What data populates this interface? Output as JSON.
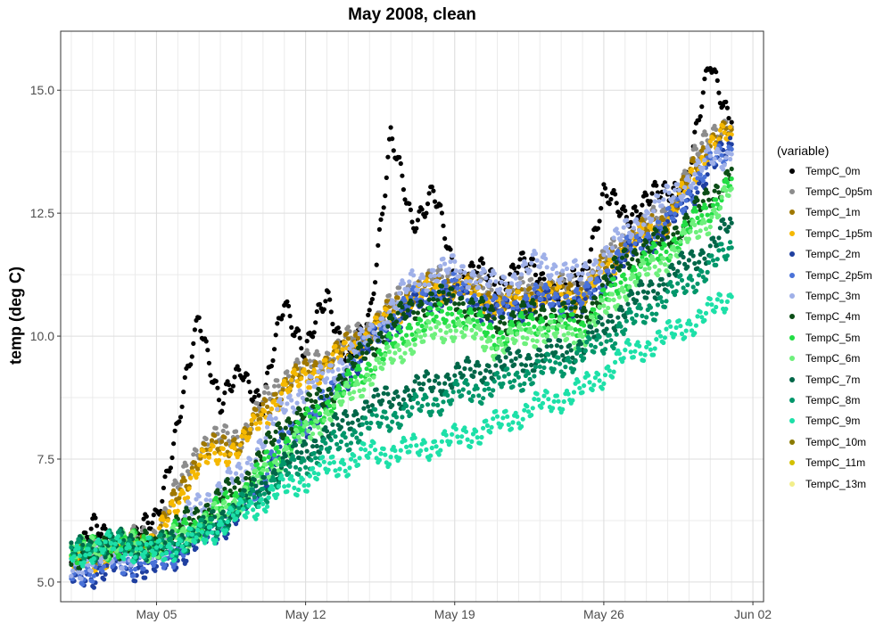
{
  "chart_data": {
    "type": "scatter",
    "title": "May 2008, clean",
    "xlabel": "",
    "ylabel": "temp (deg C)",
    "xlim": [
      "2008-04-30T12:00",
      "2008-06-02T12:00"
    ],
    "ylim": [
      4.6,
      16.2
    ],
    "x_ticks": [
      {
        "date": "2008-05-05",
        "label": "May 05"
      },
      {
        "date": "2008-05-12",
        "label": "May 12"
      },
      {
        "date": "2008-05-19",
        "label": "May 19"
      },
      {
        "date": "2008-05-26",
        "label": "May 26"
      },
      {
        "date": "2008-06-02",
        "label": "Jun 02"
      }
    ],
    "y_ticks": [
      5.0,
      7.5,
      10.0,
      12.5,
      15.0
    ],
    "y_tick_labels": [
      "5.0",
      "7.5",
      "10.0",
      "12.5",
      "15.0"
    ],
    "grid": true,
    "legend": {
      "title": "(variable)",
      "placement": "right"
    },
    "series": [
      {
        "name": "TempC_0m",
        "color": "#000000",
        "points": [
          [
            "2008-05-01T00:00",
            5.5
          ],
          [
            "2008-05-02T00:00",
            6.1
          ],
          [
            "2008-05-03T00:00",
            5.75
          ],
          [
            "2008-05-04T00:00",
            5.85
          ],
          [
            "2008-05-05T00:00",
            6.4
          ],
          [
            "2008-05-06T00:00",
            8.1
          ],
          [
            "2008-05-07T00:00",
            10.5
          ],
          [
            "2008-05-08T00:00",
            8.5
          ],
          [
            "2008-05-09T00:00",
            9.4
          ],
          [
            "2008-05-10T00:00",
            8.5
          ],
          [
            "2008-05-11T00:00",
            10.8
          ],
          [
            "2008-05-12T00:00",
            9.6
          ],
          [
            "2008-05-13T00:00",
            10.9
          ],
          [
            "2008-05-14T00:00",
            9.4
          ],
          [
            "2008-05-15T00:00",
            10.4
          ],
          [
            "2008-05-16T00:00",
            14.05
          ],
          [
            "2008-05-17T00:00",
            12.3
          ],
          [
            "2008-05-18T00:00",
            12.95
          ],
          [
            "2008-05-19T00:00",
            11.2
          ],
          [
            "2008-05-20T00:00",
            11.4
          ],
          [
            "2008-05-21T00:00",
            11.0
          ],
          [
            "2008-05-22T00:00",
            11.5
          ],
          [
            "2008-05-23T00:00",
            11.2
          ],
          [
            "2008-05-24T00:00",
            10.9
          ],
          [
            "2008-05-25T00:00",
            11.2
          ],
          [
            "2008-05-26T00:00",
            12.9
          ],
          [
            "2008-05-27T00:00",
            12.4
          ],
          [
            "2008-05-28T00:00",
            12.8
          ],
          [
            "2008-05-29T00:00",
            12.9
          ],
          [
            "2008-05-30T00:00",
            13.3
          ],
          [
            "2008-05-31T00:00",
            15.6
          ],
          [
            "2008-06-01T00:00",
            14.35
          ]
        ]
      },
      {
        "name": "TempC_0p5m",
        "color": "#8c8c8c",
        "points": [
          [
            "2008-05-01T00:00",
            5.45
          ],
          [
            "2008-05-03T00:00",
            5.7
          ],
          [
            "2008-05-05T00:00",
            6.0
          ],
          [
            "2008-05-07T00:00",
            7.8
          ],
          [
            "2008-05-09T00:00",
            8.0
          ],
          [
            "2008-05-11T00:00",
            9.2
          ],
          [
            "2008-05-13T00:00",
            9.6
          ],
          [
            "2008-05-15T00:00",
            10.2
          ],
          [
            "2008-05-17T00:00",
            11.0
          ],
          [
            "2008-05-19T00:00",
            11.2
          ],
          [
            "2008-05-21T00:00",
            10.8
          ],
          [
            "2008-05-23T00:00",
            11.0
          ],
          [
            "2008-05-25T00:00",
            11.0
          ],
          [
            "2008-05-27T00:00",
            12.0
          ],
          [
            "2008-05-29T00:00",
            12.5
          ],
          [
            "2008-05-31T00:00",
            14.2
          ],
          [
            "2008-06-01T00:00",
            14.25
          ]
        ]
      },
      {
        "name": "TempC_1m",
        "color": "#a07800",
        "points": [
          [
            "2008-05-01T00:00",
            5.4
          ],
          [
            "2008-05-03T00:00",
            5.65
          ],
          [
            "2008-05-05T00:00",
            5.9
          ],
          [
            "2008-05-07T00:00",
            7.6
          ],
          [
            "2008-05-09T00:00",
            7.9
          ],
          [
            "2008-05-11T00:00",
            9.0
          ],
          [
            "2008-05-13T00:00",
            9.5
          ],
          [
            "2008-05-15T00:00",
            10.1
          ],
          [
            "2008-05-17T00:00",
            10.9
          ],
          [
            "2008-05-19T00:00",
            11.1
          ],
          [
            "2008-05-21T00:00",
            10.7
          ],
          [
            "2008-05-23T00:00",
            10.9
          ],
          [
            "2008-05-25T00:00",
            10.9
          ],
          [
            "2008-05-27T00:00",
            11.9
          ],
          [
            "2008-05-29T00:00",
            12.4
          ],
          [
            "2008-05-31T00:00",
            14.0
          ],
          [
            "2008-06-01T00:00",
            14.2
          ]
        ]
      },
      {
        "name": "TempC_1p5m",
        "color": "#f5b800",
        "points": [
          [
            "2008-05-01T00:00",
            5.35
          ],
          [
            "2008-05-03T00:00",
            5.6
          ],
          [
            "2008-05-05T00:00",
            5.85
          ],
          [
            "2008-05-07T00:00",
            7.4
          ],
          [
            "2008-05-09T00:00",
            7.8
          ],
          [
            "2008-05-11T00:00",
            8.9
          ],
          [
            "2008-05-13T00:00",
            9.4
          ],
          [
            "2008-05-15T00:00",
            10.0
          ],
          [
            "2008-05-17T00:00",
            10.8
          ],
          [
            "2008-05-19T00:00",
            11.0
          ],
          [
            "2008-05-21T00:00",
            10.6
          ],
          [
            "2008-05-23T00:00",
            10.8
          ],
          [
            "2008-05-25T00:00",
            10.8
          ],
          [
            "2008-05-27T00:00",
            11.8
          ],
          [
            "2008-05-29T00:00",
            12.3
          ],
          [
            "2008-05-31T00:00",
            13.9
          ],
          [
            "2008-06-01T00:00",
            14.1
          ]
        ]
      },
      {
        "name": "TempC_2m",
        "color": "#1f3fa0",
        "points": [
          [
            "2008-05-01T00:00",
            5.05
          ],
          [
            "2008-05-03T00:00",
            5.3
          ],
          [
            "2008-05-05T00:00",
            5.3
          ],
          [
            "2008-05-07T00:00",
            5.8
          ],
          [
            "2008-05-09T00:00",
            6.4
          ],
          [
            "2008-05-11T00:00",
            7.8
          ],
          [
            "2008-05-13T00:00",
            8.6
          ],
          [
            "2008-05-15T00:00",
            9.8
          ],
          [
            "2008-05-17T00:00",
            10.6
          ],
          [
            "2008-05-19T00:00",
            10.9
          ],
          [
            "2008-05-21T00:00",
            10.4
          ],
          [
            "2008-05-23T00:00",
            10.7
          ],
          [
            "2008-05-25T00:00",
            10.6
          ],
          [
            "2008-05-27T00:00",
            11.6
          ],
          [
            "2008-05-29T00:00",
            12.2
          ],
          [
            "2008-05-31T00:00",
            13.4
          ],
          [
            "2008-06-01T00:00",
            13.9
          ]
        ]
      },
      {
        "name": "TempC_2p5m",
        "color": "#4a72d8",
        "points": [
          [
            "2008-05-01T00:00",
            5.15
          ],
          [
            "2008-05-03T00:00",
            5.4
          ],
          [
            "2008-05-05T00:00",
            5.4
          ],
          [
            "2008-05-07T00:00",
            5.9
          ],
          [
            "2008-05-09T00:00",
            6.5
          ],
          [
            "2008-05-11T00:00",
            7.9
          ],
          [
            "2008-05-13T00:00",
            8.7
          ],
          [
            "2008-05-15T00:00",
            9.9
          ],
          [
            "2008-05-17T00:00",
            10.7
          ],
          [
            "2008-05-19T00:00",
            11.0
          ],
          [
            "2008-05-21T00:00",
            10.5
          ],
          [
            "2008-05-23T00:00",
            10.8
          ],
          [
            "2008-05-25T00:00",
            10.7
          ],
          [
            "2008-05-27T00:00",
            11.7
          ],
          [
            "2008-05-29T00:00",
            12.3
          ],
          [
            "2008-05-31T00:00",
            13.5
          ],
          [
            "2008-06-01T00:00",
            13.8
          ]
        ]
      },
      {
        "name": "TempC_3m",
        "color": "#9fb0e8",
        "points": [
          [
            "2008-05-01T00:00",
            5.3
          ],
          [
            "2008-05-03T00:00",
            5.55
          ],
          [
            "2008-05-05T00:00",
            5.6
          ],
          [
            "2008-05-07T00:00",
            6.6
          ],
          [
            "2008-05-09T00:00",
            7.2
          ],
          [
            "2008-05-11T00:00",
            8.6
          ],
          [
            "2008-05-13T00:00",
            9.2
          ],
          [
            "2008-05-15T00:00",
            10.0
          ],
          [
            "2008-05-17T00:00",
            11.1
          ],
          [
            "2008-05-19T00:00",
            11.4
          ],
          [
            "2008-05-21T00:00",
            11.0
          ],
          [
            "2008-05-23T00:00",
            11.5
          ],
          [
            "2008-05-25T00:00",
            11.2
          ],
          [
            "2008-05-27T00:00",
            12.1
          ],
          [
            "2008-05-29T00:00",
            12.8
          ],
          [
            "2008-05-31T00:00",
            13.6
          ],
          [
            "2008-06-01T00:00",
            13.7
          ]
        ]
      },
      {
        "name": "TempC_4m",
        "color": "#0b4d16",
        "points": [
          [
            "2008-05-01T00:00",
            5.5
          ],
          [
            "2008-05-03T00:00",
            5.75
          ],
          [
            "2008-05-05T00:00",
            5.8
          ],
          [
            "2008-05-07T00:00",
            6.4
          ],
          [
            "2008-05-09T00:00",
            7.0
          ],
          [
            "2008-05-11T00:00",
            8.2
          ],
          [
            "2008-05-13T00:00",
            8.8
          ],
          [
            "2008-05-15T00:00",
            9.8
          ],
          [
            "2008-05-17T00:00",
            10.6
          ],
          [
            "2008-05-19T00:00",
            10.8
          ],
          [
            "2008-05-21T00:00",
            10.3
          ],
          [
            "2008-05-23T00:00",
            10.5
          ],
          [
            "2008-05-25T00:00",
            10.4
          ],
          [
            "2008-05-27T00:00",
            11.6
          ],
          [
            "2008-05-29T00:00",
            12.0
          ],
          [
            "2008-05-31T00:00",
            12.8
          ],
          [
            "2008-06-01T00:00",
            13.4
          ]
        ]
      },
      {
        "name": "TempC_5m",
        "color": "#22dd44",
        "points": [
          [
            "2008-05-01T00:00",
            5.55
          ],
          [
            "2008-05-03T00:00",
            5.75
          ],
          [
            "2008-05-05T00:00",
            5.75
          ],
          [
            "2008-05-07T00:00",
            6.2
          ],
          [
            "2008-05-09T00:00",
            6.8
          ],
          [
            "2008-05-11T00:00",
            7.8
          ],
          [
            "2008-05-13T00:00",
            8.6
          ],
          [
            "2008-05-15T00:00",
            9.4
          ],
          [
            "2008-05-17T00:00",
            10.2
          ],
          [
            "2008-05-19T00:00",
            10.5
          ],
          [
            "2008-05-21T00:00",
            10.0
          ],
          [
            "2008-05-23T00:00",
            10.3
          ],
          [
            "2008-05-25T00:00",
            10.2
          ],
          [
            "2008-05-27T00:00",
            11.2
          ],
          [
            "2008-05-29T00:00",
            11.8
          ],
          [
            "2008-05-31T00:00",
            12.6
          ],
          [
            "2008-06-01T00:00",
            13.2
          ]
        ]
      },
      {
        "name": "TempC_6m",
        "color": "#6ef07c",
        "points": [
          [
            "2008-05-01T00:00",
            5.6
          ],
          [
            "2008-05-03T00:00",
            5.8
          ],
          [
            "2008-05-05T00:00",
            5.7
          ],
          [
            "2008-05-07T00:00",
            6.1
          ],
          [
            "2008-05-09T00:00",
            6.7
          ],
          [
            "2008-05-11T00:00",
            7.6
          ],
          [
            "2008-05-13T00:00",
            8.4
          ],
          [
            "2008-05-15T00:00",
            9.2
          ],
          [
            "2008-05-17T00:00",
            9.9
          ],
          [
            "2008-05-19T00:00",
            10.2
          ],
          [
            "2008-05-21T00:00",
            9.8
          ],
          [
            "2008-05-23T00:00",
            10.1
          ],
          [
            "2008-05-25T00:00",
            10.0
          ],
          [
            "2008-05-27T00:00",
            11.0
          ],
          [
            "2008-05-29T00:00",
            11.6
          ],
          [
            "2008-05-31T00:00",
            12.4
          ],
          [
            "2008-06-01T00:00",
            13.0
          ]
        ]
      },
      {
        "name": "TempC_7m",
        "color": "#006648",
        "points": [
          [
            "2008-05-01T00:00",
            5.6
          ],
          [
            "2008-05-03T00:00",
            5.8
          ],
          [
            "2008-05-05T00:00",
            5.7
          ],
          [
            "2008-05-07T00:00",
            6.0
          ],
          [
            "2008-05-09T00:00",
            6.6
          ],
          [
            "2008-05-11T00:00",
            7.4
          ],
          [
            "2008-05-13T00:00",
            8.0
          ],
          [
            "2008-05-15T00:00",
            8.6
          ],
          [
            "2008-05-17T00:00",
            8.9
          ],
          [
            "2008-05-19T00:00",
            9.2
          ],
          [
            "2008-05-21T00:00",
            9.4
          ],
          [
            "2008-05-23T00:00",
            9.6
          ],
          [
            "2008-05-25T00:00",
            9.8
          ],
          [
            "2008-05-27T00:00",
            10.6
          ],
          [
            "2008-05-29T00:00",
            11.2
          ],
          [
            "2008-05-31T00:00",
            11.8
          ],
          [
            "2008-06-01T00:00",
            12.3
          ]
        ]
      },
      {
        "name": "TempC_8m",
        "color": "#00966a",
        "points": [
          [
            "2008-05-01T00:00",
            5.6
          ],
          [
            "2008-05-03T00:00",
            5.8
          ],
          [
            "2008-05-05T00:00",
            5.65
          ],
          [
            "2008-05-07T00:00",
            5.95
          ],
          [
            "2008-05-09T00:00",
            6.5
          ],
          [
            "2008-05-11T00:00",
            7.2
          ],
          [
            "2008-05-13T00:00",
            7.7
          ],
          [
            "2008-05-15T00:00",
            8.2
          ],
          [
            "2008-05-17T00:00",
            8.5
          ],
          [
            "2008-05-19T00:00",
            8.8
          ],
          [
            "2008-05-21T00:00",
            9.0
          ],
          [
            "2008-05-23T00:00",
            9.3
          ],
          [
            "2008-05-25T00:00",
            9.6
          ],
          [
            "2008-05-27T00:00",
            10.2
          ],
          [
            "2008-05-29T00:00",
            10.8
          ],
          [
            "2008-05-31T00:00",
            11.4
          ],
          [
            "2008-06-01T00:00",
            11.8
          ]
        ]
      },
      {
        "name": "TempC_9m",
        "color": "#1de0a8",
        "points": [
          [
            "2008-05-01T00:00",
            5.55
          ],
          [
            "2008-05-03T00:00",
            5.75
          ],
          [
            "2008-05-05T00:00",
            5.6
          ],
          [
            "2008-05-07T00:00",
            5.9
          ],
          [
            "2008-05-09T00:00",
            6.4
          ],
          [
            "2008-05-11T00:00",
            6.9
          ],
          [
            "2008-05-13T00:00",
            7.3
          ],
          [
            "2008-05-15T00:00",
            7.6
          ],
          [
            "2008-05-17T00:00",
            7.7
          ],
          [
            "2008-05-19T00:00",
            7.9
          ],
          [
            "2008-05-21T00:00",
            8.2
          ],
          [
            "2008-05-23T00:00",
            8.6
          ],
          [
            "2008-05-25T00:00",
            8.9
          ],
          [
            "2008-05-27T00:00",
            9.6
          ],
          [
            "2008-05-29T00:00",
            10.0
          ],
          [
            "2008-05-31T00:00",
            10.5
          ],
          [
            "2008-06-01T00:00",
            10.8
          ]
        ]
      },
      {
        "name": "TempC_10m",
        "color": "#8b7a00",
        "points": []
      },
      {
        "name": "TempC_11m",
        "color": "#d4c000",
        "points": []
      },
      {
        "name": "TempC_13m",
        "color": "#f2ee8a",
        "points": []
      }
    ]
  }
}
